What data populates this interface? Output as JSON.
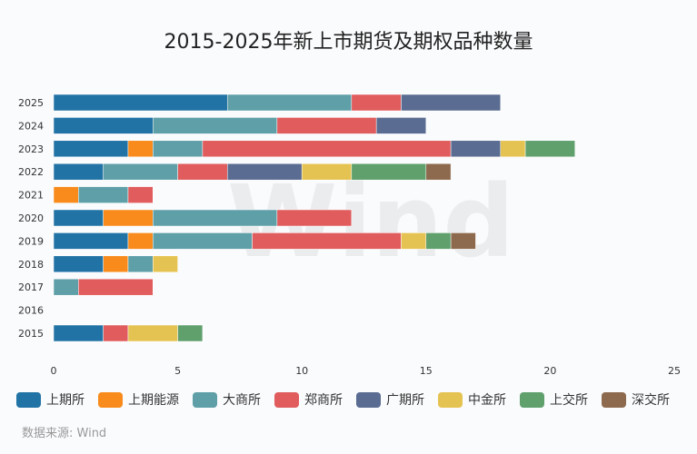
{
  "chart_data": {
    "type": "bar",
    "orientation": "horizontal",
    "stacked": true,
    "title": "2015-2025年新上市期货及期权品种数量",
    "categories": [
      "2025",
      "2024",
      "2023",
      "2022",
      "2021",
      "2020",
      "2019",
      "2018",
      "2017",
      "2016",
      "2015"
    ],
    "xlim": [
      0,
      25
    ],
    "xticks": [
      0,
      5,
      10,
      15,
      20,
      25
    ],
    "grid": false,
    "legend_position": "bottom",
    "series": [
      {
        "name": "上期所",
        "color": "#2173a5",
        "values": [
          7,
          4,
          3,
          2,
          0,
          2,
          3,
          2,
          0,
          0,
          2
        ]
      },
      {
        "name": "上期能源",
        "color": "#f88b1b",
        "values": [
          0,
          0,
          1,
          0,
          1,
          2,
          1,
          1,
          0,
          0,
          0
        ]
      },
      {
        "name": "大商所",
        "color": "#5f9fa8",
        "values": [
          5,
          5,
          2,
          3,
          2,
          5,
          4,
          1,
          1,
          0,
          0
        ]
      },
      {
        "name": "郑商所",
        "color": "#e05c5d",
        "values": [
          2,
          4,
          10,
          2,
          1,
          3,
          6,
          0,
          3,
          0,
          1
        ]
      },
      {
        "name": "广期所",
        "color": "#5a6c91",
        "values": [
          4,
          2,
          2,
          3,
          0,
          0,
          0,
          0,
          0,
          0,
          0
        ]
      },
      {
        "name": "中金所",
        "color": "#e5c352",
        "values": [
          0,
          0,
          1,
          2,
          0,
          0,
          1,
          1,
          0,
          0,
          2
        ]
      },
      {
        "name": "上交所",
        "color": "#5fa06d",
        "values": [
          0,
          0,
          2,
          3,
          0,
          0,
          1,
          0,
          0,
          0,
          1
        ]
      },
      {
        "name": "深交所",
        "color": "#8d6a4d",
        "values": [
          0,
          0,
          0,
          1,
          0,
          0,
          1,
          0,
          0,
          0,
          0
        ]
      }
    ]
  },
  "source": "数据来源: Wind",
  "watermark": "Wind"
}
